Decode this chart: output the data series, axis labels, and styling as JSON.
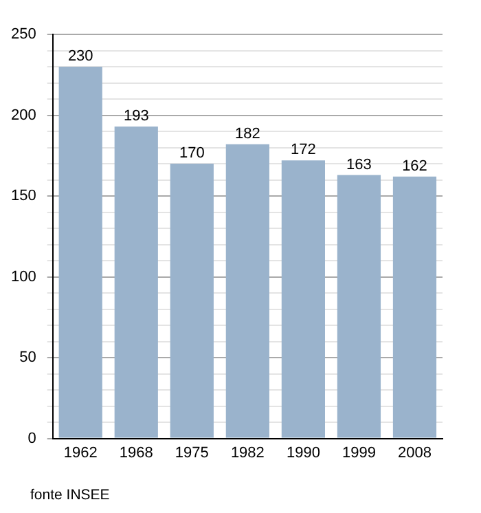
{
  "chart_data": {
    "type": "bar",
    "categories": [
      "1962",
      "1968",
      "1975",
      "1982",
      "1990",
      "1999",
      "2008"
    ],
    "values": [
      230,
      193,
      170,
      182,
      172,
      163,
      162
    ],
    "color": "#9ab3cc",
    "ylim": [
      0,
      250
    ],
    "yticks": [
      0,
      {
        "value": 10,
        "label": null
      },
      {
        "value": 20,
        "label": null
      },
      {
        "value": 30,
        "label": null
      },
      {
        "value": 40,
        "label": null
      },
      50,
      {
        "value": 60,
        "label": null
      },
      {
        "value": 70,
        "label": null
      },
      {
        "value": 80,
        "label": null
      },
      {
        "value": 90,
        "label": null
      },
      100,
      {
        "value": 110,
        "label": null
      },
      {
        "value": 120,
        "label": null
      },
      {
        "value": 130,
        "label": null
      },
      {
        "value": 140,
        "label": null
      },
      150,
      {
        "value": 160,
        "label": null
      },
      {
        "value": 170,
        "label": null
      },
      {
        "value": 180,
        "label": null
      },
      {
        "value": 190,
        "label": null
      },
      200,
      {
        "value": 210,
        "label": null
      },
      {
        "value": 220,
        "label": null
      },
      {
        "value": 230,
        "label": null
      },
      {
        "value": 240,
        "label": null
      },
      250
    ],
    "grid": "y",
    "data_labels": true,
    "annotations": [
      "fonte INSEE"
    ]
  }
}
